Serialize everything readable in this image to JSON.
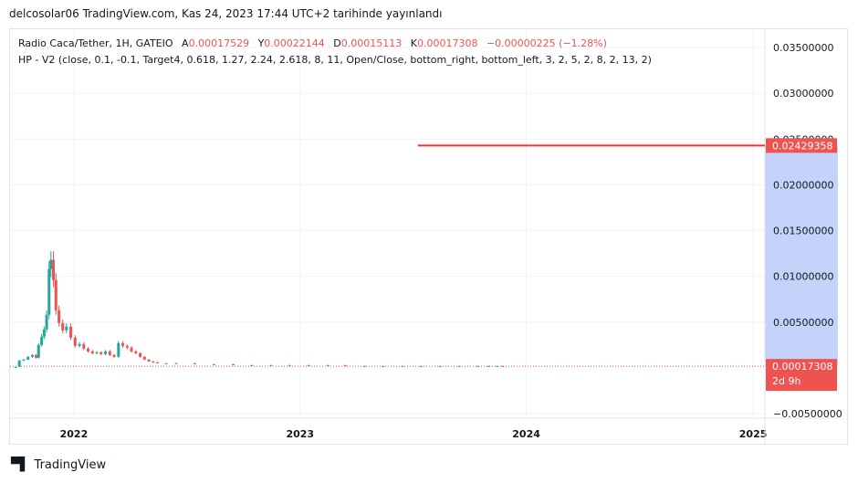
{
  "header": {
    "published": "delcosolar06 TradingView.com, Kas 24, 2023 17:44 UTC+2 tarihinde yayınlandı"
  },
  "legend": {
    "symbol": "Radio Caca/Tether, 1H, GATEIO",
    "open_label": "A",
    "open": "0.00017529",
    "high_label": "Y",
    "high": "0.00022144",
    "low_label": "D",
    "low": "0.00015113",
    "close_label": "K",
    "close": "0.00017308",
    "change": "−0.00000225 (−1.28%)",
    "indicator": "HP - V2 (close, 0.1, -0.1, Target4, 0.618, 1.27, 2.24, 2.618, 8, 11, Open/Close, bottom_right, bottom_left, 3, 2, 5, 2, 8, 2, 13, 2)"
  },
  "footer": {
    "brand": "TradingView",
    "logo": "tradingview-logo"
  },
  "colors": {
    "up": "#26a69a",
    "down": "#ef5350",
    "target_line": "#e53935",
    "zone": "#c5d3fb",
    "badge": "#ef5350"
  },
  "chart_data": {
    "type": "line",
    "y_ticks": [
      "0.03500000",
      "0.03000000",
      "0.02500000",
      "0.02000000",
      "0.01500000",
      "0.01000000",
      "0.00500000",
      "−0.00500000"
    ],
    "y_tick_values": [
      0.035,
      0.03,
      0.025,
      0.02,
      0.015,
      0.01,
      0.005,
      -0.005
    ],
    "x_ticks": [
      "2022",
      "2023",
      "2024",
      "2025"
    ],
    "ylim": [
      -0.0055,
      0.037
    ],
    "xlim": [
      "2021-09-20",
      "2025-01-20"
    ],
    "grid": true,
    "target_price": "0.02429358",
    "target_value": 0.02429358,
    "target_from": "2023-07-10",
    "last_price": "0.00017308",
    "last_value": 0.00017308,
    "countdown": "2d 9h",
    "series": [
      {
        "x": [
          "2021-09-29",
          "2021-10-05",
          "2021-10-12",
          "2021-10-19",
          "2021-10-26",
          "2021-11-01",
          "2021-11-05",
          "2021-11-10",
          "2021-11-14",
          "2021-11-18",
          "2021-11-22",
          "2021-11-25",
          "2021-11-29",
          "2021-12-03",
          "2021-12-08",
          "2021-12-14",
          "2021-12-20",
          "2021-12-27",
          "2022-01-03",
          "2022-01-10",
          "2022-01-17",
          "2022-01-24",
          "2022-01-31",
          "2022-02-07",
          "2022-02-14",
          "2022-02-21",
          "2022-02-28",
          "2022-03-07",
          "2022-03-14",
          "2022-03-21",
          "2022-03-28",
          "2022-04-04",
          "2022-04-11",
          "2022-04-18",
          "2022-04-25",
          "2022-05-02",
          "2022-05-09",
          "2022-05-16",
          "2022-05-30",
          "2022-06-15",
          "2022-07-15",
          "2022-08-15",
          "2022-09-15",
          "2022-10-15",
          "2022-11-15",
          "2022-12-15",
          "2023-01-15",
          "2023-02-15",
          "2023-03-15",
          "2023-04-15",
          "2023-05-15",
          "2023-06-15",
          "2023-07-15",
          "2023-08-15",
          "2023-09-15",
          "2023-10-15",
          "2023-11-01",
          "2023-11-15",
          "2023-11-24"
        ],
        "y": [
          0.0001,
          0.0008,
          0.0009,
          0.0012,
          0.0014,
          0.0011,
          0.0025,
          0.0034,
          0.0042,
          0.0058,
          0.0108,
          0.0118,
          0.0096,
          0.0063,
          0.0049,
          0.0041,
          0.0045,
          0.0033,
          0.0024,
          0.0026,
          0.0021,
          0.0018,
          0.0016,
          0.0017,
          0.0015,
          0.0018,
          0.0014,
          0.0012,
          0.0027,
          0.0024,
          0.0022,
          0.0018,
          0.0016,
          0.0012,
          0.0009,
          0.0007,
          0.0006,
          0.0005,
          0.0005,
          0.0005,
          0.0004,
          0.0004,
          0.0003,
          0.0003,
          0.0003,
          0.0003,
          0.0003,
          0.0003,
          0.0002,
          0.0002,
          0.0002,
          0.0002,
          0.0002,
          0.0002,
          0.0002,
          0.0002,
          0.0002,
          0.0002,
          0.00017
        ]
      }
    ]
  }
}
